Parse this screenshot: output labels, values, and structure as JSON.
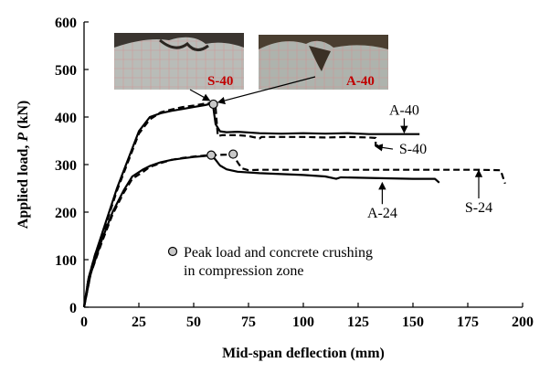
{
  "chart_data": {
    "type": "line",
    "xlabel": "Mid-span deflection (mm)",
    "ylabel_parts": [
      "Applied load, ",
      "P",
      " (kN)"
    ],
    "xlim": [
      0,
      200
    ],
    "ylim": [
      0,
      600
    ],
    "x_ticks": [
      "0",
      "25",
      "50",
      "75",
      "100",
      "125",
      "150",
      "175",
      "200"
    ],
    "y_ticks": [
      "0",
      "100",
      "200",
      "300",
      "400",
      "500",
      "600"
    ],
    "grid": false,
    "series": [
      {
        "name": "A-40",
        "style": "solid",
        "points": [
          [
            0,
            0
          ],
          [
            2,
            60
          ],
          [
            5,
            110
          ],
          [
            10,
            180
          ],
          [
            15,
            250
          ],
          [
            20,
            310
          ],
          [
            25,
            370
          ],
          [
            30,
            400
          ],
          [
            35,
            408
          ],
          [
            40,
            413
          ],
          [
            45,
            417
          ],
          [
            50,
            421
          ],
          [
            55,
            425
          ],
          [
            58,
            428
          ],
          [
            59,
            418
          ],
          [
            60,
            385
          ],
          [
            62,
            370
          ],
          [
            65,
            368
          ],
          [
            70,
            369
          ],
          [
            80,
            366
          ],
          [
            90,
            365
          ],
          [
            100,
            366
          ],
          [
            110,
            365
          ],
          [
            120,
            366
          ],
          [
            130,
            364
          ],
          [
            140,
            364
          ],
          [
            150,
            364
          ],
          [
            153,
            364
          ]
        ]
      },
      {
        "name": "S-40",
        "style": "dashed",
        "points": [
          [
            0,
            0
          ],
          [
            2,
            60
          ],
          [
            5,
            110
          ],
          [
            10,
            175
          ],
          [
            15,
            245
          ],
          [
            20,
            305
          ],
          [
            25,
            365
          ],
          [
            30,
            395
          ],
          [
            35,
            410
          ],
          [
            40,
            416
          ],
          [
            45,
            421
          ],
          [
            50,
            424
          ],
          [
            55,
            428
          ],
          [
            58,
            430
          ],
          [
            60,
            420
          ],
          [
            61,
            360
          ],
          [
            63,
            362
          ],
          [
            70,
            362
          ],
          [
            75,
            360
          ],
          [
            80,
            355
          ],
          [
            81,
            358
          ],
          [
            90,
            358
          ],
          [
            100,
            358
          ],
          [
            110,
            357
          ],
          [
            120,
            358
          ],
          [
            130,
            357
          ],
          [
            133,
            356
          ],
          [
            133,
            340
          ],
          [
            135,
            340
          ]
        ]
      },
      {
        "name": "A-24",
        "style": "solid",
        "points": [
          [
            0,
            0
          ],
          [
            3,
            70
          ],
          [
            8,
            140
          ],
          [
            13,
            200
          ],
          [
            18,
            245
          ],
          [
            22,
            275
          ],
          [
            27,
            290
          ],
          [
            30,
            297
          ],
          [
            35,
            305
          ],
          [
            40,
            310
          ],
          [
            45,
            313
          ],
          [
            50,
            316
          ],
          [
            55,
            318
          ],
          [
            58,
            320
          ],
          [
            60,
            310
          ],
          [
            62,
            298
          ],
          [
            65,
            290
          ],
          [
            70,
            285
          ],
          [
            80,
            282
          ],
          [
            90,
            280
          ],
          [
            100,
            278
          ],
          [
            110,
            275
          ],
          [
            115,
            270
          ],
          [
            117,
            273
          ],
          [
            130,
            272
          ],
          [
            140,
            271
          ],
          [
            150,
            270
          ],
          [
            160,
            270
          ],
          [
            162,
            262
          ]
        ]
      },
      {
        "name": "S-24",
        "style": "dashed",
        "points": [
          [
            0,
            0
          ],
          [
            3,
            70
          ],
          [
            8,
            135
          ],
          [
            13,
            195
          ],
          [
            18,
            240
          ],
          [
            22,
            270
          ],
          [
            27,
            285
          ],
          [
            30,
            295
          ],
          [
            35,
            303
          ],
          [
            40,
            310
          ],
          [
            45,
            314
          ],
          [
            50,
            317
          ],
          [
            55,
            319
          ],
          [
            60,
            320
          ],
          [
            65,
            321
          ],
          [
            68,
            322
          ],
          [
            70,
            305
          ],
          [
            72,
            292
          ],
          [
            75,
            288
          ],
          [
            80,
            289
          ],
          [
            90,
            289
          ],
          [
            100,
            289
          ],
          [
            110,
            289
          ],
          [
            120,
            289
          ],
          [
            130,
            289
          ],
          [
            140,
            289
          ],
          [
            150,
            289
          ],
          [
            160,
            289
          ],
          [
            170,
            289
          ],
          [
            180,
            289
          ],
          [
            190,
            288
          ],
          [
            192,
            260
          ]
        ]
      }
    ],
    "peak_markers": [
      [
        59,
        427
      ],
      [
        58,
        320
      ],
      [
        68,
        322
      ]
    ],
    "series_labels": [
      {
        "text": "A-40",
        "at": [
          146,
          405
        ],
        "arrow_to": [
          146,
          367
        ]
      },
      {
        "text": "S-40",
        "at": [
          150,
          323
        ],
        "arrow_to": [
          133,
          338
        ]
      },
      {
        "text": "A-24",
        "at": [
          136,
          188
        ],
        "arrow_to": [
          136,
          262
        ]
      },
      {
        "text": "S-24",
        "at": [
          180,
          200
        ],
        "arrow_to": [
          180,
          288
        ]
      }
    ],
    "legend": {
      "text_line1": "Peak load and concrete crushing",
      "text_line2": "in compression zone",
      "position": "lower-middle"
    },
    "photos": [
      {
        "label": "S-40",
        "points_to_peak": 0
      },
      {
        "label": "A-40",
        "points_to_peak": 0
      }
    ]
  }
}
